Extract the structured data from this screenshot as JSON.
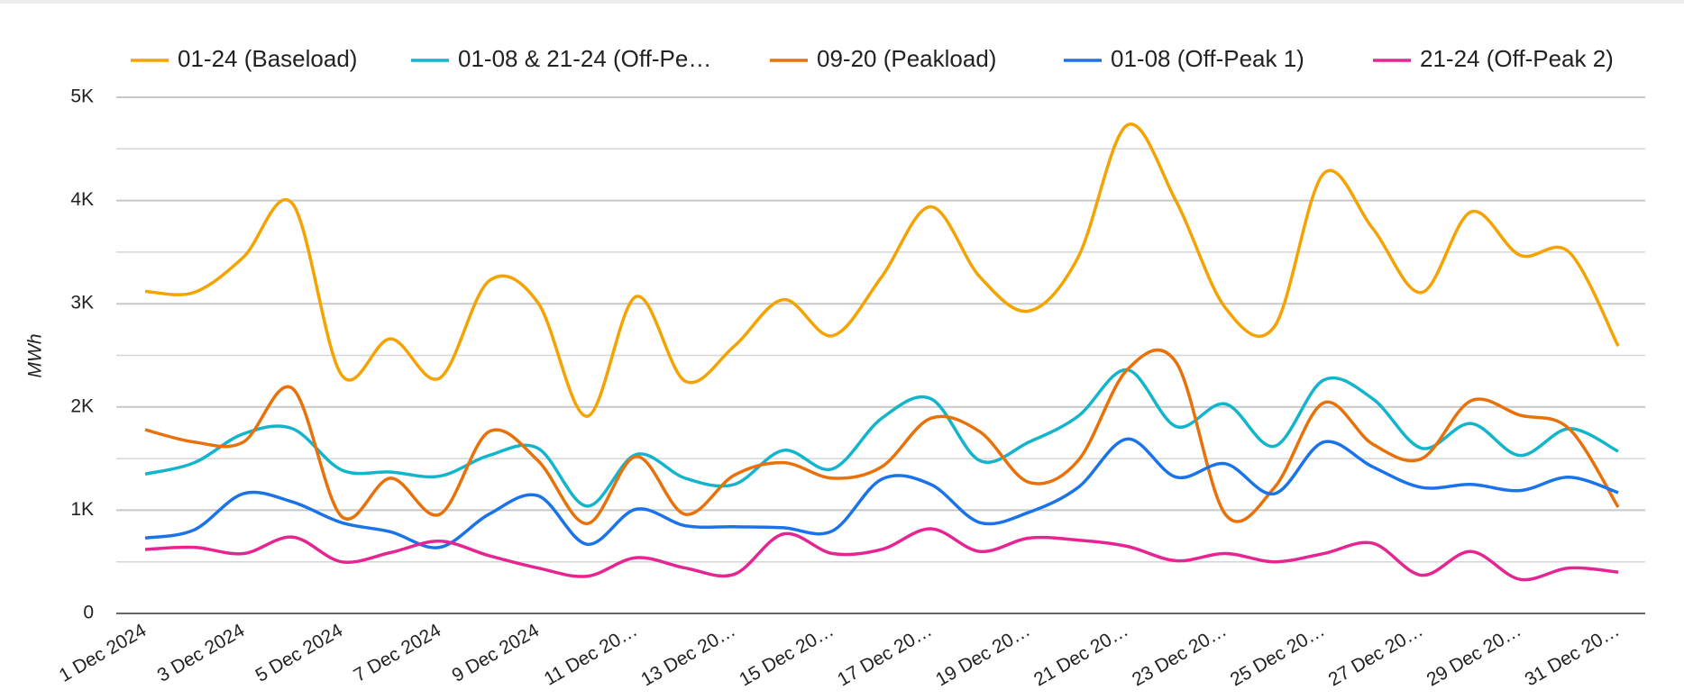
{
  "chart_data": {
    "type": "line",
    "y_label": "MWh",
    "categories": [
      "1 Dec 2024",
      null,
      "3 Dec 2024",
      null,
      "5 Dec 2024",
      null,
      "7 Dec 2024",
      null,
      "9 Dec 2024",
      null,
      "11 Dec 20…",
      null,
      "13 Dec 20…",
      null,
      "15 Dec 20…",
      null,
      "17 Dec 20…",
      null,
      "19 Dec 20…",
      null,
      "21 Dec 20…",
      null,
      "23 Dec 20…",
      null,
      "25 Dec 20…",
      null,
      "27 Dec 20…",
      null,
      "29 Dec 20…",
      null,
      "31 Dec 20…"
    ],
    "series": [
      {
        "name": "01-24 (Baseload)",
        "color": "#f4a300",
        "values": [
          3120,
          3110,
          3450,
          3970,
          2310,
          2660,
          2280,
          3220,
          3010,
          1910,
          3070,
          2250,
          2590,
          3040,
          2690,
          3260,
          3940,
          3260,
          2930,
          3450,
          4730,
          3990,
          2960,
          2780,
          4260,
          3730,
          3110,
          3890,
          3470,
          3500,
          2590
        ]
      },
      {
        "name": "01-08 & 21-24 (Off-Pe…",
        "color": "#12b5cb",
        "values": [
          1350,
          1460,
          1740,
          1790,
          1390,
          1370,
          1330,
          1530,
          1600,
          1040,
          1540,
          1310,
          1250,
          1580,
          1400,
          1890,
          2080,
          1480,
          1660,
          1910,
          2360,
          1810,
          2030,
          1620,
          2260,
          2080,
          1600,
          1840,
          1530,
          1790,
          1570
        ]
      },
      {
        "name": "09-20 (Peakload)",
        "color": "#e8710a",
        "values": [
          1780,
          1660,
          1660,
          2180,
          940,
          1310,
          960,
          1760,
          1480,
          870,
          1520,
          960,
          1340,
          1460,
          1310,
          1420,
          1890,
          1760,
          1270,
          1480,
          2360,
          2430,
          960,
          1220,
          2040,
          1640,
          1500,
          2060,
          1920,
          1790,
          1030
        ]
      },
      {
        "name": "01-08 (Off-Peak 1)",
        "color": "#1a73e8",
        "values": [
          730,
          810,
          1160,
          1080,
          880,
          790,
          640,
          960,
          1140,
          670,
          1010,
          850,
          840,
          830,
          800,
          1300,
          1250,
          880,
          980,
          1220,
          1690,
          1320,
          1450,
          1160,
          1660,
          1420,
          1220,
          1250,
          1190,
          1320,
          1170
        ]
      },
      {
        "name": "21-24 (Off-Peak 2)",
        "color": "#e52592",
        "values": [
          620,
          640,
          580,
          740,
          500,
          590,
          700,
          560,
          440,
          360,
          540,
          440,
          380,
          770,
          580,
          620,
          820,
          600,
          730,
          710,
          650,
          510,
          580,
          500,
          580,
          680,
          370,
          600,
          330,
          440,
          400
        ]
      }
    ],
    "ylim": [
      0,
      5000
    ],
    "yticks": [
      0,
      {
        "value": 1000,
        "label": "1K"
      },
      {
        "value": 2000,
        "label": "2K"
      },
      {
        "value": 3000,
        "label": "3K"
      },
      {
        "value": 4000,
        "label": "4K"
      },
      {
        "value": 5000,
        "label": "5K"
      }
    ],
    "minor_gridlines": [
      500,
      1500,
      2500,
      3500,
      4500
    ],
    "grid": true,
    "legend": "top",
    "smooth": true
  }
}
